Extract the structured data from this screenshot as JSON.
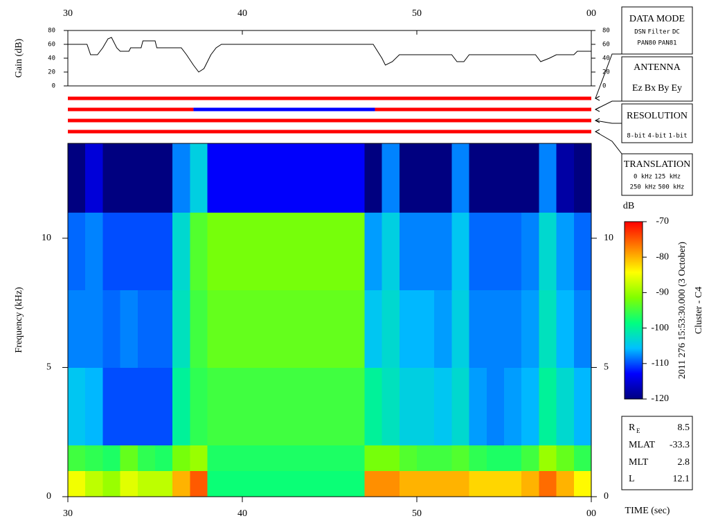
{
  "chart_data": [
    {
      "type": "line",
      "ylabel": "Gain (dB)",
      "xlim": [
        30,
        60
      ],
      "xticks": [
        30,
        40,
        50,
        {
          "value": 60,
          "label": "00"
        }
      ],
      "ylim": [
        0,
        80
      ],
      "yticks": [
        0,
        20,
        40,
        60,
        80
      ],
      "color": "#000000",
      "x": [
        30,
        31.1,
        31.3,
        31.7,
        32.0,
        32.3,
        32.5,
        32.8,
        33.0,
        33.5,
        33.6,
        34.2,
        34.3,
        35.0,
        35.1,
        36.5,
        36.8,
        37.2,
        37.5,
        37.8,
        38.2,
        38.5,
        38.8,
        47.5,
        48.0,
        48.2,
        48.6,
        49.0,
        52.0,
        52.3,
        52.7,
        53.0,
        56.8,
        57.1,
        57.6,
        58.0,
        59.0,
        59.2,
        60
      ],
      "values": [
        60,
        60,
        45,
        45,
        55,
        68,
        70,
        55,
        50,
        50,
        55,
        55,
        65,
        65,
        55,
        55,
        45,
        30,
        20,
        25,
        45,
        55,
        60,
        60,
        40,
        30,
        35,
        45,
        45,
        35,
        35,
        45,
        45,
        35,
        40,
        45,
        45,
        50,
        50
      ]
    },
    {
      "type": "timeline",
      "xlim": [
        30,
        60
      ],
      "bars": [
        {
          "segments": [
            {
              "start": 30,
              "end": 60,
              "color": "#ff0000"
            }
          ]
        },
        {
          "segments": [
            {
              "start": 30,
              "end": 37.2,
              "color": "#ff0000"
            },
            {
              "start": 37.2,
              "end": 47.6,
              "color": "#0000ff"
            },
            {
              "start": 47.6,
              "end": 60,
              "color": "#ff0000"
            }
          ]
        },
        {
          "segments": [
            {
              "start": 30,
              "end": 60,
              "color": "#ff0000"
            }
          ]
        },
        {
          "segments": [
            {
              "start": 30,
              "end": 60,
              "color": "#ff0000"
            }
          ]
        }
      ]
    },
    {
      "type": "heatmap",
      "ylabel": "Frequency (kHz)",
      "xlabel": "TIME (sec)",
      "xlim": [
        30,
        60
      ],
      "xticks": [
        30,
        40,
        50,
        {
          "value": 60,
          "label": "00"
        }
      ],
      "ylim": [
        0,
        13.67
      ],
      "yticks": [
        0,
        5,
        10
      ],
      "zlim": [
        -120,
        -70
      ],
      "zticks": [
        -70,
        -80,
        -90,
        -100,
        -110,
        -120
      ],
      "zlabel": "dB",
      "colormap": [
        "#000080",
        "#0000ff",
        "#00c0ff",
        "#00ff80",
        "#80ff00",
        "#ffff00",
        "#ff8000",
        "#ff0000"
      ],
      "x_edges": [
        30,
        31,
        32,
        33,
        34,
        35,
        36,
        37,
        38,
        39,
        40,
        41,
        42,
        43,
        44,
        45,
        46,
        47,
        48,
        49,
        50,
        51,
        52,
        53,
        54,
        55,
        56,
        57,
        58,
        59,
        60
      ],
      "y_edges": [
        0,
        1,
        2,
        5,
        8,
        11,
        13.67
      ],
      "values": [
        [
          -85,
          -88,
          -90,
          -86,
          -88,
          -88,
          -80,
          -75,
          -98,
          -98,
          -98,
          -98,
          -98,
          -98,
          -98,
          -98,
          -98,
          -78,
          -78,
          -80,
          -80,
          -80,
          -80,
          -82,
          -82,
          -82,
          -80,
          -76,
          -80,
          -84
        ],
        [
          -95,
          -96,
          -97,
          -93,
          -96,
          -97,
          -92,
          -90,
          -97,
          -97,
          -97,
          -97,
          -97,
          -97,
          -97,
          -97,
          -97,
          -92,
          -92,
          -94,
          -95,
          -95,
          -94,
          -96,
          -97,
          -97,
          -95,
          -90,
          -93,
          -96
        ],
        [
          -105,
          -106,
          -110,
          -110,
          -110,
          -110,
          -100,
          -96,
          -95,
          -95,
          -95,
          -95,
          -95,
          -95,
          -95,
          -95,
          -95,
          -100,
          -102,
          -104,
          -104,
          -105,
          -103,
          -107,
          -108,
          -107,
          -106,
          -100,
          -103,
          -106
        ],
        [
          -108,
          -108,
          -109,
          -108,
          -109,
          -109,
          -102,
          -95,
          -93,
          -93,
          -93,
          -93,
          -93,
          -93,
          -93,
          -93,
          -93,
          -105,
          -103,
          -106,
          -106,
          -107,
          -104,
          -108,
          -108,
          -108,
          -107,
          -102,
          -106,
          -108
        ],
        [
          -109,
          -108,
          -110,
          -110,
          -110,
          -110,
          -103,
          -94,
          -92,
          -92,
          -92,
          -92,
          -92,
          -92,
          -92,
          -92,
          -92,
          -107,
          -104,
          -108,
          -108,
          -108,
          -105,
          -109,
          -109,
          -109,
          -108,
          -103,
          -107,
          -109
        ],
        [
          -120,
          -115,
          -120,
          -120,
          -120,
          -120,
          -108,
          -104,
          -113,
          -113,
          -113,
          -113,
          -113,
          -113,
          -113,
          -113,
          -113,
          -120,
          -108,
          -120,
          -120,
          -120,
          -108,
          -120,
          -120,
          -120,
          -120,
          -108,
          -118,
          -120
        ]
      ]
    }
  ],
  "legend_boxes": [
    {
      "title": "DATA MODE",
      "rows": [
        [
          {
            "name": "DSN",
            "color": "#ff0000"
          },
          {
            "name": "Filter",
            "color": "#00c000"
          },
          {
            "name": "DC",
            "color": "#0000ff"
          }
        ],
        [
          {
            "name": "PAN80",
            "color": "#000000"
          },
          {
            "name": "PAN81",
            "color": "#00c8c8"
          }
        ]
      ]
    },
    {
      "title": "ANTENNA",
      "rows": [
        [
          {
            "name": "Ez",
            "color": "#ff0000"
          },
          {
            "name": "Bx",
            "color": "#00c000"
          },
          {
            "name": "By",
            "color": "#0000ff"
          },
          {
            "name": "Ey",
            "color": "#000000"
          }
        ]
      ]
    },
    {
      "title": "RESOLUTION",
      "rows": [
        [
          {
            "name": "8-bit",
            "color": "#ff0000"
          },
          {
            "name": "4-bit",
            "color": "#00c000"
          },
          {
            "name": "1-bit",
            "color": "#0000ff"
          }
        ]
      ]
    },
    {
      "title": "TRANSLATION",
      "rows": [
        [
          {
            "name": "0 kHz",
            "color": "#ff0000"
          },
          {
            "name": "125 kHz",
            "color": "#00c000"
          }
        ],
        [
          {
            "name": "250 kHz",
            "color": "#0000ff"
          },
          {
            "name": "500 kHz",
            "color": "#000000"
          }
        ]
      ]
    }
  ],
  "annotations": [
    "2011 276 15:53:30.000 (3 October)",
    "Cluster - C4"
  ],
  "info_table": {
    "rows": [
      {
        "label": "R",
        "subscript": "E",
        "value": 8.5
      },
      {
        "label": "MLAT",
        "value": -33.3
      },
      {
        "label": "MLT",
        "value": 2.8
      },
      {
        "label": "L",
        "value": 12.1
      }
    ]
  }
}
